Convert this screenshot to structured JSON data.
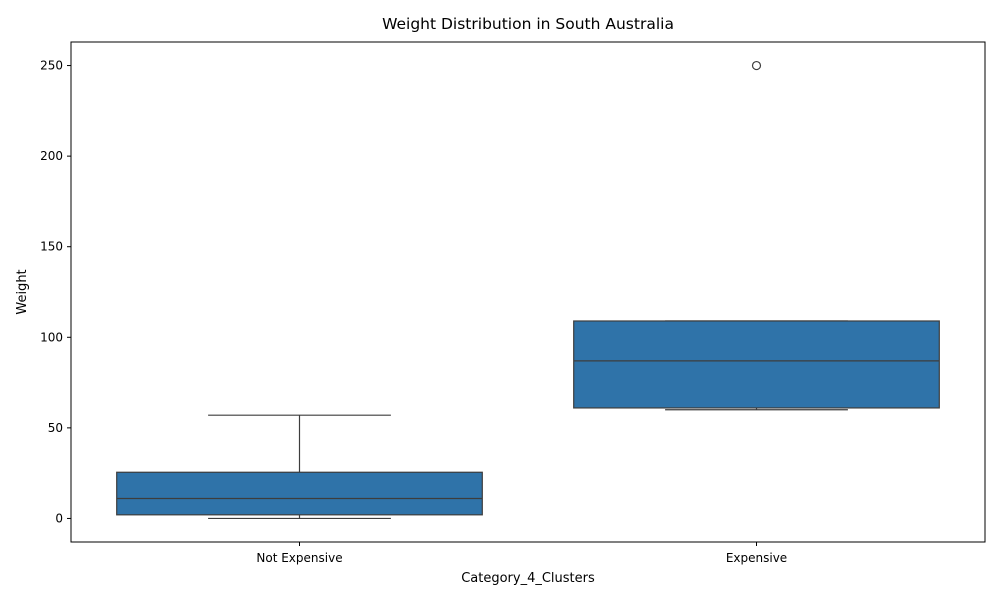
{
  "chart_data": {
    "type": "boxplot",
    "title": "Weight Distribution in South Australia",
    "xlabel": "Category_4_Clusters",
    "ylabel": "Weight",
    "ylim": [
      -13,
      263
    ],
    "yticks": [
      0,
      50,
      100,
      150,
      200,
      250
    ],
    "grid": false,
    "legend": "none",
    "box_color": "#2f73a9",
    "line_color": "#3d3d3d",
    "categories": [
      "Not Expensive",
      "Expensive"
    ],
    "boxes": [
      {
        "category": "Not Expensive",
        "whisker_low": 0,
        "q1": 2,
        "median": 11,
        "q3": 25.5,
        "whisker_high": 57,
        "outliers": []
      },
      {
        "category": "Expensive",
        "whisker_low": 60,
        "q1": 61,
        "median": 87,
        "q3": 109,
        "whisker_high": 109,
        "outliers": [
          250
        ]
      }
    ]
  }
}
